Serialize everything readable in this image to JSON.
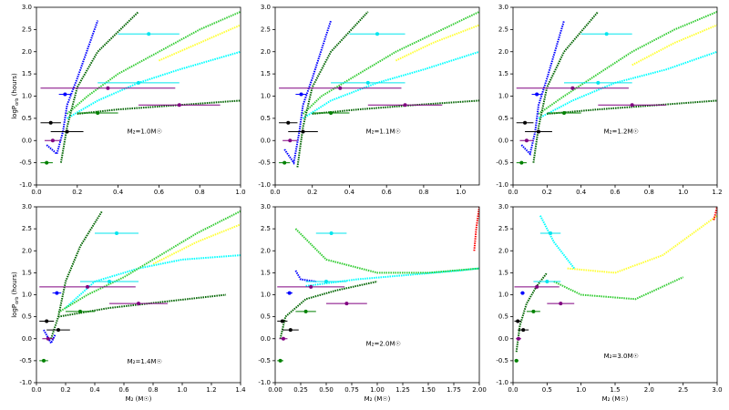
{
  "chart_data": [
    {
      "type": "line",
      "annotation": "M₂=1.0M☉",
      "y_label": "logP",
      "y_label_sub": "orb",
      "y_label_unit": " (hours)",
      "xlim": [
        0,
        1
      ],
      "ylim": [
        -1,
        3
      ],
      "xticks": [
        {
          "value": 0,
          "label": "0.0"
        },
        0.2,
        0.4,
        0.6,
        0.8,
        {
          "value": 1,
          "label": "1.0"
        }
      ],
      "yticks": [
        {
          "value": -1,
          "label": "-1.0"
        },
        -0.5,
        {
          "value": 0,
          "label": "0.0"
        },
        0.5,
        {
          "value": 1,
          "label": "1.0"
        },
        1.5,
        {
          "value": 2,
          "label": "2.0"
        },
        2.5,
        {
          "value": 3,
          "label": "3.0"
        }
      ],
      "series": [
        {
          "color": "#ffff33",
          "x": [
            0.6,
            0.8,
            1.0
          ],
          "values": [
            1.8,
            2.2,
            2.6
          ]
        },
        {
          "color": "#00ffff",
          "x": [
            0.15,
            0.3,
            0.5,
            0.7,
            1.0
          ],
          "values": [
            0.5,
            0.9,
            1.3,
            1.6,
            2.0
          ]
        },
        {
          "color": "#33cc33",
          "x": [
            0.15,
            0.25,
            0.4,
            0.6,
            0.8,
            1.0
          ],
          "values": [
            0.6,
            1.0,
            1.5,
            2.0,
            2.5,
            2.9
          ]
        },
        {
          "color": "#006400",
          "x": [
            0.12,
            0.15,
            0.2,
            0.3,
            0.5
          ],
          "values": [
            -0.5,
            0.3,
            1.2,
            2.0,
            2.9
          ]
        },
        {
          "color": "#006400",
          "x": [
            0.2,
            0.4,
            0.7,
            1.0
          ],
          "values": [
            0.6,
            0.7,
            0.8,
            0.9
          ]
        },
        {
          "color": "#0000ff",
          "x": [
            0.05,
            0.1,
            0.13,
            0.15,
            0.2,
            0.3
          ],
          "values": [
            -0.1,
            -0.3,
            0.2,
            0.8,
            1.4,
            2.7
          ]
        }
      ],
      "observed": {
        "x": [
          0.35,
          0.14,
          0.07,
          0.15,
          0.55,
          0.5,
          0.7,
          0.3,
          0.05,
          0.08
        ],
        "xerr": [
          0.33,
          0.03,
          0.05,
          0.08,
          0.15,
          0.2,
          0.2,
          0.1,
          0.03,
          0.04
        ],
        "values": [
          1.18,
          1.04,
          0.4,
          0.2,
          2.4,
          1.3,
          0.8,
          0.62,
          -0.5,
          0.0
        ],
        "colors": [
          "#800080",
          "#0000ff",
          "#000000",
          "#000000",
          "#00e5ee",
          "#00e5ee",
          "#800080",
          "#008000",
          "#008000",
          "#800080"
        ]
      }
    },
    {
      "type": "line",
      "annotation": "M₂=1.1M☉",
      "xlim": [
        0,
        1.1
      ],
      "ylim": [
        -1,
        3
      ],
      "xticks": [
        {
          "value": 0,
          "label": "0.0"
        },
        0.2,
        0.4,
        0.6,
        0.8,
        {
          "value": 1,
          "label": "1.0"
        }
      ],
      "yticks": [
        {
          "value": -1,
          "label": "-1.0"
        },
        -0.5,
        {
          "value": 0,
          "label": "0.0"
        },
        0.5,
        {
          "value": 1,
          "label": "1.0"
        },
        1.5,
        {
          "value": 2,
          "label": "2.0"
        },
        2.5,
        {
          "value": 3,
          "label": "3.0"
        }
      ],
      "series": [
        {
          "color": "#ffff33",
          "x": [
            0.65,
            0.85,
            1.1
          ],
          "values": [
            1.8,
            2.2,
            2.6
          ]
        },
        {
          "color": "#00ffff",
          "x": [
            0.15,
            0.3,
            0.55,
            0.8,
            1.1
          ],
          "values": [
            0.5,
            0.9,
            1.3,
            1.6,
            2.0
          ]
        },
        {
          "color": "#33cc33",
          "x": [
            0.15,
            0.25,
            0.45,
            0.65,
            0.9,
            1.1
          ],
          "values": [
            0.6,
            1.0,
            1.5,
            2.0,
            2.5,
            2.9
          ]
        },
        {
          "color": "#006400",
          "x": [
            0.12,
            0.15,
            0.2,
            0.3,
            0.5
          ],
          "values": [
            -0.6,
            0.3,
            1.2,
            2.0,
            2.9
          ]
        },
        {
          "color": "#006400",
          "x": [
            0.2,
            0.45,
            0.75,
            1.1
          ],
          "values": [
            0.6,
            0.7,
            0.8,
            0.9
          ]
        },
        {
          "color": "#0000ff",
          "x": [
            0.05,
            0.1,
            0.13,
            0.15,
            0.2,
            0.3
          ],
          "values": [
            -0.2,
            -0.5,
            0.2,
            0.8,
            1.4,
            2.7
          ]
        }
      ],
      "observed": {
        "x": [
          0.35,
          0.14,
          0.07,
          0.15,
          0.55,
          0.5,
          0.7,
          0.3,
          0.05,
          0.08
        ],
        "xerr": [
          0.33,
          0.03,
          0.05,
          0.08,
          0.15,
          0.2,
          0.2,
          0.1,
          0.03,
          0.04
        ],
        "values": [
          1.18,
          1.04,
          0.4,
          0.2,
          2.4,
          1.3,
          0.8,
          0.62,
          -0.5,
          0.0
        ],
        "colors": [
          "#800080",
          "#0000ff",
          "#000000",
          "#000000",
          "#00e5ee",
          "#00e5ee",
          "#800080",
          "#008000",
          "#008000",
          "#800080"
        ]
      }
    },
    {
      "type": "line",
      "annotation": "M₂=1.2M☉",
      "xlim": [
        0,
        1.2
      ],
      "ylim": [
        -1,
        3
      ],
      "xticks": [
        {
          "value": 0,
          "label": "0.0"
        },
        0.2,
        0.4,
        0.6,
        0.8,
        {
          "value": 1,
          "label": "1.0"
        },
        1.2
      ],
      "yticks": [
        {
          "value": -1,
          "label": "-1.0"
        },
        -0.5,
        {
          "value": 0,
          "label": "0.0"
        },
        0.5,
        {
          "value": 1,
          "label": "1.0"
        },
        1.5,
        {
          "value": 2,
          "label": "2.0"
        },
        2.5,
        {
          "value": 3,
          "label": "3.0"
        }
      ],
      "series": [
        {
          "color": "#ffff33",
          "x": [
            0.7,
            0.95,
            1.2
          ],
          "values": [
            1.7,
            2.2,
            2.6
          ]
        },
        {
          "color": "#00ffff",
          "x": [
            0.15,
            0.35,
            0.6,
            0.9,
            1.2
          ],
          "values": [
            0.5,
            0.9,
            1.3,
            1.6,
            2.0
          ]
        },
        {
          "color": "#33cc33",
          "x": [
            0.15,
            0.3,
            0.5,
            0.7,
            0.95,
            1.2
          ],
          "values": [
            0.6,
            1.0,
            1.5,
            2.0,
            2.5,
            2.9
          ]
        },
        {
          "color": "#006400",
          "x": [
            0.12,
            0.15,
            0.2,
            0.3,
            0.5
          ],
          "values": [
            -0.5,
            0.3,
            1.2,
            2.0,
            2.9
          ]
        },
        {
          "color": "#006400",
          "x": [
            0.2,
            0.5,
            0.85,
            1.2
          ],
          "values": [
            0.6,
            0.7,
            0.8,
            0.9
          ]
        },
        {
          "color": "#0000ff",
          "x": [
            0.05,
            0.1,
            0.13,
            0.15,
            0.2,
            0.3
          ],
          "values": [
            -0.1,
            -0.3,
            0.2,
            0.8,
            1.4,
            2.7
          ]
        }
      ],
      "observed": {
        "x": [
          0.35,
          0.14,
          0.07,
          0.15,
          0.55,
          0.5,
          0.7,
          0.3,
          0.05,
          0.08
        ],
        "xerr": [
          0.33,
          0.03,
          0.05,
          0.08,
          0.15,
          0.2,
          0.2,
          0.1,
          0.03,
          0.04
        ],
        "values": [
          1.18,
          1.04,
          0.4,
          0.2,
          2.4,
          1.3,
          0.8,
          0.62,
          -0.5,
          0.0
        ],
        "colors": [
          "#800080",
          "#0000ff",
          "#000000",
          "#000000",
          "#00e5ee",
          "#00e5ee",
          "#800080",
          "#008000",
          "#008000",
          "#800080"
        ]
      }
    },
    {
      "type": "line",
      "annotation": "M₂=1.4M☉",
      "y_label": "logP",
      "y_label_sub": "orb",
      "y_label_unit": " (hours)",
      "x_label": "M₂ (M☉)",
      "xlim": [
        0,
        1.4
      ],
      "ylim": [
        -1,
        3
      ],
      "xticks": [
        {
          "value": 0,
          "label": "0.0"
        },
        0.2,
        0.4,
        0.6,
        0.8,
        {
          "value": 1,
          "label": "1.0"
        },
        1.2,
        1.4
      ],
      "yticks": [
        {
          "value": -1,
          "label": "-1.0"
        },
        -0.5,
        {
          "value": 0,
          "label": "0.0"
        },
        0.5,
        {
          "value": 1,
          "label": "1.0"
        },
        1.5,
        {
          "value": 2,
          "label": "2.0"
        },
        2.5,
        {
          "value": 3,
          "label": "3.0"
        }
      ],
      "series": [
        {
          "color": "#ffff33",
          "x": [
            0.8,
            1.1,
            1.4
          ],
          "values": [
            1.7,
            2.2,
            2.6
          ]
        },
        {
          "color": "#00ffff",
          "x": [
            0.2,
            0.4,
            0.7,
            1.0,
            1.4
          ],
          "values": [
            0.7,
            1.3,
            1.6,
            1.8,
            1.9
          ]
        },
        {
          "color": "#33cc33",
          "x": [
            0.15,
            0.35,
            0.6,
            0.85,
            1.1,
            1.4
          ],
          "values": [
            0.6,
            1.0,
            1.4,
            1.9,
            2.4,
            2.9
          ]
        },
        {
          "color": "#006400",
          "x": [
            0.1,
            0.15,
            0.2,
            0.3,
            0.45
          ],
          "values": [
            0.0,
            0.5,
            1.3,
            2.1,
            2.9
          ]
        },
        {
          "color": "#006400",
          "x": [
            0.15,
            0.5,
            0.9,
            1.3
          ],
          "values": [
            0.5,
            0.7,
            0.85,
            1.0
          ]
        },
        {
          "color": "#0000ff",
          "x": [
            0.05,
            0.1,
            0.13
          ],
          "values": [
            0.2,
            -0.1,
            0.1
          ]
        }
      ],
      "observed": {
        "x": [
          0.35,
          0.14,
          0.07,
          0.15,
          0.55,
          0.5,
          0.7,
          0.3,
          0.05,
          0.08
        ],
        "xerr": [
          0.33,
          0.03,
          0.05,
          0.08,
          0.15,
          0.2,
          0.2,
          0.1,
          0.03,
          0.04
        ],
        "values": [
          1.18,
          1.04,
          0.4,
          0.2,
          2.4,
          1.3,
          0.8,
          0.62,
          -0.5,
          0.0
        ],
        "colors": [
          "#800080",
          "#0000ff",
          "#000000",
          "#000000",
          "#00e5ee",
          "#00e5ee",
          "#800080",
          "#008000",
          "#008000",
          "#800080"
        ]
      }
    },
    {
      "type": "line",
      "annotation": "M₂=2.0M☉",
      "x_label": "M₂ (M☉)",
      "xlim": [
        0,
        2
      ],
      "ylim": [
        -1,
        3
      ],
      "xticks": [
        {
          "value": 0,
          "label": "0.00"
        },
        0.25,
        {
          "value": 0.5,
          "label": "0.50"
        },
        0.75,
        {
          "value": 1,
          "label": "1.00"
        },
        1.25,
        {
          "value": 1.5,
          "label": "1.50"
        },
        1.75,
        {
          "value": 2,
          "label": "2.00"
        }
      ],
      "yticks": [
        {
          "value": -1,
          "label": "-1.0"
        },
        -0.5,
        {
          "value": 0,
          "label": "0.0"
        },
        0.5,
        {
          "value": 1,
          "label": "1.0"
        },
        1.5,
        {
          "value": 2,
          "label": "2.0"
        },
        2.5,
        {
          "value": 3,
          "label": "3.0"
        }
      ],
      "series": [
        {
          "color": "#00ffff",
          "x": [
            0.3,
            0.8,
            1.3,
            1.8,
            2.0
          ],
          "values": [
            1.2,
            1.35,
            1.45,
            1.55,
            1.6
          ]
        },
        {
          "color": "#33cc33",
          "x": [
            0.2,
            0.5,
            1.0,
            1.5,
            2.0
          ],
          "values": [
            2.5,
            1.8,
            1.5,
            1.5,
            1.6
          ]
        },
        {
          "color": "#006400",
          "x": [
            0.05,
            0.1,
            0.3,
            0.6,
            1.0
          ],
          "values": [
            0.0,
            0.5,
            0.9,
            1.1,
            1.3
          ]
        },
        {
          "color": "#0000ff",
          "x": [
            0.2,
            0.25,
            0.4
          ],
          "values": [
            1.55,
            1.35,
            1.3
          ]
        },
        {
          "color": "#ff0000",
          "x": [
            1.95,
            1.97,
            2.0
          ],
          "values": [
            2.0,
            2.5,
            3.0
          ]
        }
      ],
      "observed": {
        "x": [
          0.35,
          0.14,
          0.07,
          0.15,
          0.55,
          0.5,
          0.7,
          0.3,
          0.05,
          0.08
        ],
        "xerr": [
          0.33,
          0.03,
          0.05,
          0.08,
          0.15,
          0.2,
          0.2,
          0.1,
          0.03,
          0.04
        ],
        "values": [
          1.18,
          1.04,
          0.4,
          0.2,
          2.4,
          1.3,
          0.8,
          0.62,
          -0.5,
          0.0
        ],
        "colors": [
          "#800080",
          "#0000ff",
          "#000000",
          "#000000",
          "#00e5ee",
          "#00e5ee",
          "#800080",
          "#008000",
          "#008000",
          "#800080"
        ]
      }
    },
    {
      "type": "line",
      "annotation": "M₂=3.0M☉",
      "x_label": "M₂ (M☉)",
      "xlim": [
        0,
        3
      ],
      "ylim": [
        -1,
        3
      ],
      "xticks": [
        {
          "value": 0,
          "label": "0.0"
        },
        0.5,
        {
          "value": 1,
          "label": "1.0"
        },
        1.5,
        {
          "value": 2,
          "label": "2.0"
        },
        2.5,
        {
          "value": 3,
          "label": "3.0"
        }
      ],
      "yticks": [
        {
          "value": -1,
          "label": "-1.0"
        },
        -0.5,
        {
          "value": 0,
          "label": "0.0"
        },
        0.5,
        {
          "value": 1,
          "label": "1.0"
        },
        1.5,
        {
          "value": 2,
          "label": "2.0"
        },
        2.5,
        {
          "value": 3,
          "label": "3.0"
        }
      ],
      "series": [
        {
          "color": "#ffff33",
          "x": [
            0.8,
            1.5,
            2.2,
            3.0
          ],
          "values": [
            1.6,
            1.5,
            1.9,
            2.8
          ]
        },
        {
          "color": "#33cc33",
          "x": [
            0.6,
            1.0,
            1.8,
            2.5
          ],
          "values": [
            1.3,
            1.0,
            0.9,
            1.4
          ]
        },
        {
          "color": "#00ffff",
          "x": [
            0.4,
            0.6,
            0.9
          ],
          "values": [
            2.8,
            2.2,
            1.6
          ]
        },
        {
          "color": "#006400",
          "x": [
            0.05,
            0.1,
            0.2,
            0.35,
            0.5
          ],
          "values": [
            -0.3,
            0.3,
            0.8,
            1.2,
            1.5
          ]
        },
        {
          "color": "#ff0000",
          "x": [
            2.95,
            3.0
          ],
          "values": [
            2.7,
            3.0
          ]
        }
      ],
      "observed": {
        "x": [
          0.35,
          0.14,
          0.07,
          0.15,
          0.55,
          0.5,
          0.7,
          0.3,
          0.05,
          0.08
        ],
        "xerr": [
          0.33,
          0.03,
          0.05,
          0.08,
          0.15,
          0.2,
          0.2,
          0.1,
          0.03,
          0.04
        ],
        "values": [
          1.18,
          1.04,
          0.4,
          0.2,
          2.4,
          1.3,
          0.8,
          0.62,
          -0.5,
          0.0
        ],
        "colors": [
          "#800080",
          "#0000ff",
          "#000000",
          "#000000",
          "#00e5ee",
          "#00e5ee",
          "#800080",
          "#008000",
          "#008000",
          "#800080"
        ]
      }
    }
  ]
}
